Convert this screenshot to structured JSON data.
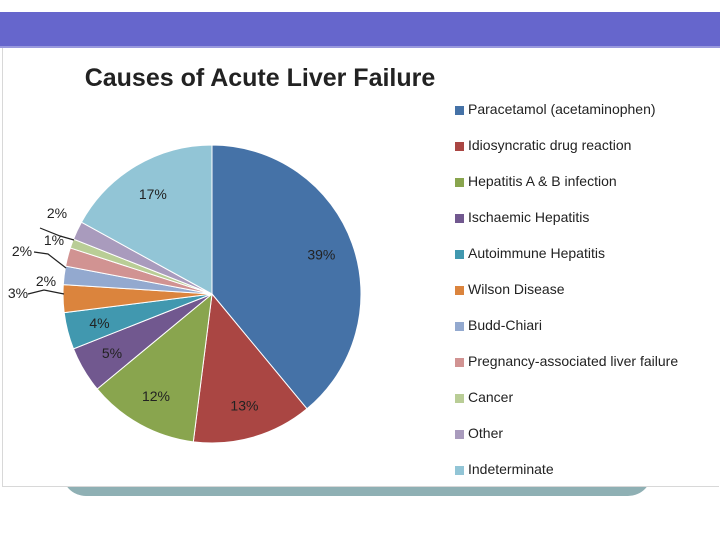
{
  "chart_data": {
    "type": "pie",
    "title": "Causes of Acute Liver Failure",
    "legend_position": "right",
    "slices": [
      {
        "name": "Paracetamol (acetaminophen)",
        "value": 39,
        "label": "39%",
        "color": "#4572a7"
      },
      {
        "name": "Idiosyncratic drug reaction",
        "value": 13,
        "label": "13%",
        "color": "#aa4643"
      },
      {
        "name": "Hepatitis A & B infection",
        "value": 12,
        "label": "12%",
        "color": "#89a54e"
      },
      {
        "name": "Ischaemic Hepatitis",
        "value": 5,
        "label": "5%",
        "color": "#71588f"
      },
      {
        "name": "Autoimmune Hepatitis",
        "value": 4,
        "label": "4%",
        "color": "#4198af"
      },
      {
        "name": "Wilson Disease",
        "value": 3,
        "label": "3%",
        "color": "#db843d"
      },
      {
        "name": "Budd-Chiari",
        "value": 2,
        "label": "2%",
        "color": "#93a9cf"
      },
      {
        "name": "Pregnancy-associated liver failure",
        "value": 2,
        "label": "2%",
        "color": "#d19392"
      },
      {
        "name": "Cancer",
        "value": 1,
        "label": "1%",
        "color": "#b9cd96"
      },
      {
        "name": "Other",
        "value": 2,
        "label": "2%",
        "color": "#a99bbd"
      },
      {
        "name": "Indeterminate",
        "value": 17,
        "label": "17%",
        "color": "#92c5d6"
      }
    ]
  }
}
